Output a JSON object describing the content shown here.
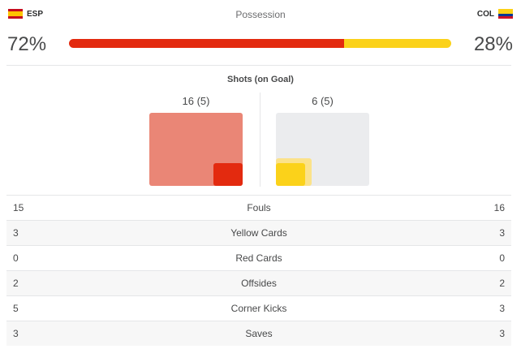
{
  "teams": {
    "home": {
      "abbr": "ESP",
      "flag_icon": "spain-flag-icon"
    },
    "away": {
      "abbr": "COL",
      "flag_icon": "colombia-flag-icon"
    }
  },
  "possession": {
    "title": "Possession",
    "home_pct": "72%",
    "away_pct": "28%",
    "home_fraction": 0.72,
    "away_fraction": 0.28,
    "colors": {
      "home": "#e32a0f",
      "away": "#fbd21a"
    }
  },
  "shots": {
    "title": "Shots (on Goal)",
    "home_label": "16 (5)",
    "away_label": "6 (5)"
  },
  "stats": [
    {
      "home": "15",
      "label": "Fouls",
      "away": "16"
    },
    {
      "home": "3",
      "label": "Yellow Cards",
      "away": "3"
    },
    {
      "home": "0",
      "label": "Red Cards",
      "away": "0"
    },
    {
      "home": "2",
      "label": "Offsides",
      "away": "2"
    },
    {
      "home": "5",
      "label": "Corner Kicks",
      "away": "3"
    },
    {
      "home": "3",
      "label": "Saves",
      "away": "3"
    }
  ]
}
